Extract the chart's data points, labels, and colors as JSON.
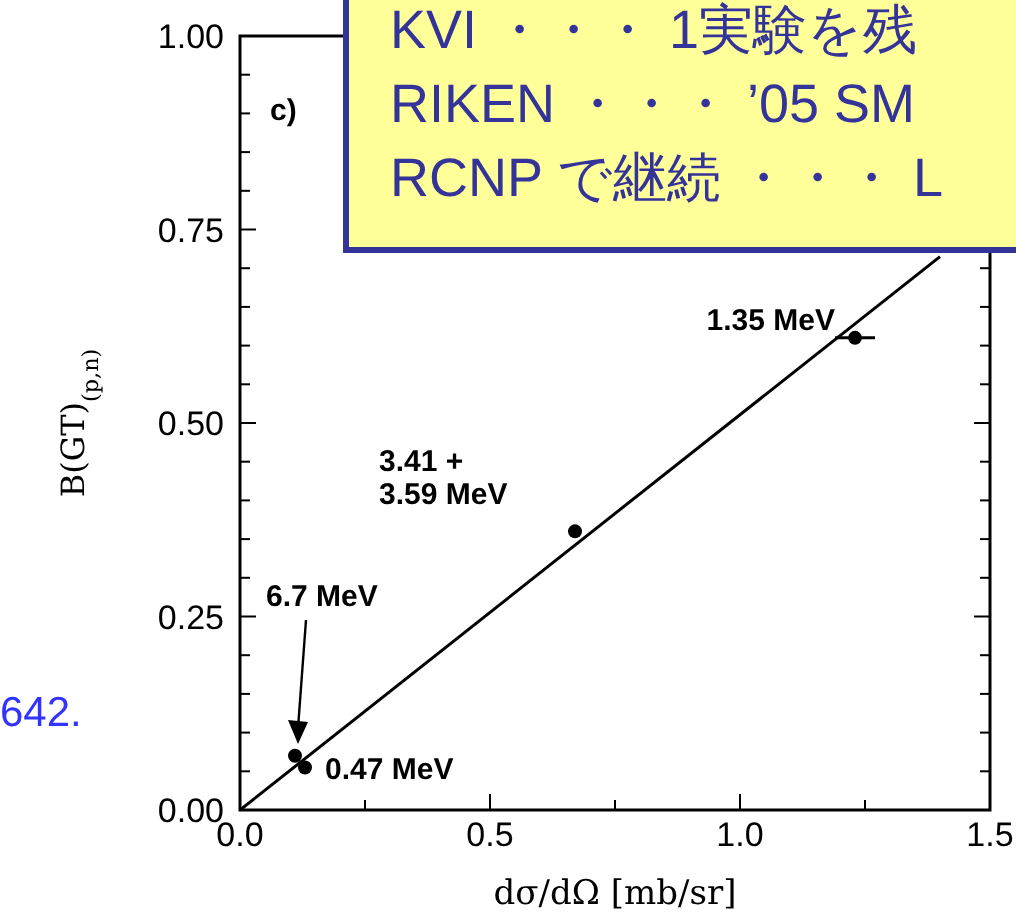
{
  "chart_data": {
    "type": "scatter",
    "xlabel": "dσ/dΩ [mb/sr]",
    "ylabel": "B(GT)$_{(p,n)}$",
    "xlim": [
      0,
      1.5
    ],
    "ylim": [
      0,
      1
    ],
    "xticks": [
      {
        "value": 0,
        "label": "0.0"
      },
      {
        "value": 0.25,
        "label": null
      },
      {
        "value": 0.5,
        "label": "0.5"
      },
      {
        "value": 0.75,
        "label": null
      },
      {
        "value": 1,
        "label": "1.0"
      },
      {
        "value": 1.25,
        "label": null
      },
      {
        "value": 1.5,
        "label": "1.5"
      }
    ],
    "yticks": [
      {
        "value": 0,
        "label": "0.00"
      },
      {
        "value": 0.05,
        "label": null
      },
      {
        "value": 0.1,
        "label": null
      },
      {
        "value": 0.15,
        "label": null
      },
      {
        "value": 0.2,
        "label": null
      },
      {
        "value": 0.25,
        "label": "0.25"
      },
      {
        "value": 0.3,
        "label": null
      },
      {
        "value": 0.35,
        "label": null
      },
      {
        "value": 0.4,
        "label": null
      },
      {
        "value": 0.45,
        "label": null
      },
      {
        "value": 0.5,
        "label": "0.50"
      },
      {
        "value": 0.55,
        "label": null
      },
      {
        "value": 0.6,
        "label": null
      },
      {
        "value": 0.65,
        "label": null
      },
      {
        "value": 0.7,
        "label": null
      },
      {
        "value": 0.75,
        "label": "0.75"
      },
      {
        "value": 0.8,
        "label": null
      },
      {
        "value": 0.85,
        "label": null
      },
      {
        "value": 0.9,
        "label": null
      },
      {
        "value": 0.95,
        "label": null
      },
      {
        "value": 1,
        "label": "1.00"
      }
    ],
    "series": [
      {
        "type": "scatter",
        "color": "#000000",
        "marker": "circle",
        "x": [
          1.23,
          0.67,
          0.11,
          0.13
        ],
        "values": [
          0.61,
          0.36,
          0.07,
          0.055
        ],
        "xerrors": [
          0.04,
          null,
          null,
          null
        ]
      },
      {
        "type": "line",
        "color": "#000000",
        "marker": "none",
        "line_style": "solid",
        "x": [
          0,
          1.4
        ],
        "values": [
          0,
          0.715
        ]
      }
    ],
    "annotations": [
      {
        "text": "1.35 MeV",
        "x": 1.23,
        "y": 0.61
      },
      {
        "text": "3.41 +\n3.59 MeV",
        "x": 0.67,
        "y": 0.36
      },
      "6.7 MeV",
      {
        "text": "0.47 MeV",
        "x": 0.13,
        "y": 0.055
      },
      "c)",
      "KVI ・・・ 1実験を残",
      "RIKEN ・・・ ’05 SM",
      "RCNP で継続 ・・・ L",
      "642."
    ]
  }
}
